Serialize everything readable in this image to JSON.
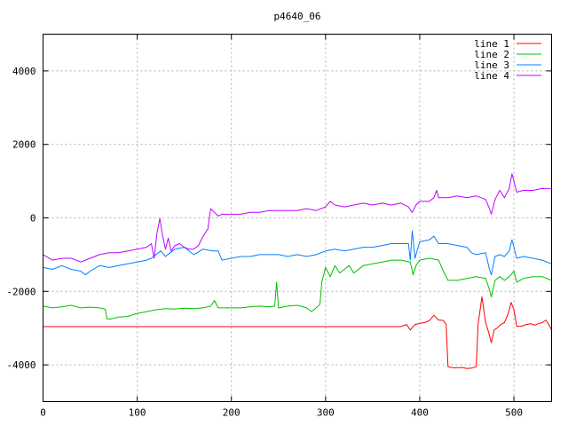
{
  "chart_data": {
    "type": "line",
    "title": "p4640_06",
    "xlabel": "",
    "ylabel": "",
    "xlim": [
      0,
      540
    ],
    "ylim": [
      -5000,
      5000
    ],
    "x_ticks": [
      0,
      100,
      200,
      300,
      400,
      500
    ],
    "y_ticks": [
      -4000,
      -2000,
      0,
      2000,
      4000
    ],
    "grid": true,
    "legend_position": "top-right",
    "series": [
      {
        "name": "line 1",
        "color": "#ff0000",
        "points": [
          [
            0,
            -2960
          ],
          [
            100,
            -2960
          ],
          [
            200,
            -2960
          ],
          [
            300,
            -2960
          ],
          [
            380,
            -2960
          ],
          [
            386,
            -2900
          ],
          [
            390,
            -3050
          ],
          [
            395,
            -2900
          ],
          [
            400,
            -2870
          ],
          [
            405,
            -2850
          ],
          [
            410,
            -2800
          ],
          [
            415,
            -2650
          ],
          [
            420,
            -2780
          ],
          [
            425,
            -2790
          ],
          [
            428,
            -2900
          ],
          [
            430,
            -4050
          ],
          [
            435,
            -4080
          ],
          [
            440,
            -4080
          ],
          [
            445,
            -4070
          ],
          [
            450,
            -4100
          ],
          [
            455,
            -4090
          ],
          [
            460,
            -4050
          ],
          [
            462,
            -2900
          ],
          [
            466,
            -2150
          ],
          [
            470,
            -2850
          ],
          [
            473,
            -3100
          ],
          [
            476,
            -3400
          ],
          [
            479,
            -3050
          ],
          [
            482,
            -3000
          ],
          [
            486,
            -2900
          ],
          [
            490,
            -2850
          ],
          [
            494,
            -2600
          ],
          [
            497,
            -2300
          ],
          [
            500,
            -2500
          ],
          [
            503,
            -2950
          ],
          [
            508,
            -2950
          ],
          [
            513,
            -2900
          ],
          [
            518,
            -2880
          ],
          [
            522,
            -2920
          ],
          [
            526,
            -2880
          ],
          [
            530,
            -2850
          ],
          [
            534,
            -2780
          ],
          [
            537,
            -2900
          ],
          [
            540,
            -3050
          ]
        ]
      },
      {
        "name": "line 2",
        "color": "#00c000",
        "points": [
          [
            0,
            -2400
          ],
          [
            10,
            -2450
          ],
          [
            20,
            -2420
          ],
          [
            30,
            -2380
          ],
          [
            40,
            -2450
          ],
          [
            50,
            -2430
          ],
          [
            60,
            -2450
          ],
          [
            66,
            -2480
          ],
          [
            68,
            -2750
          ],
          [
            72,
            -2750
          ],
          [
            80,
            -2700
          ],
          [
            90,
            -2680
          ],
          [
            100,
            -2600
          ],
          [
            110,
            -2550
          ],
          [
            120,
            -2500
          ],
          [
            130,
            -2470
          ],
          [
            140,
            -2480
          ],
          [
            150,
            -2460
          ],
          [
            160,
            -2470
          ],
          [
            170,
            -2450
          ],
          [
            178,
            -2400
          ],
          [
            182,
            -2250
          ],
          [
            186,
            -2450
          ],
          [
            200,
            -2450
          ],
          [
            210,
            -2450
          ],
          [
            220,
            -2420
          ],
          [
            230,
            -2400
          ],
          [
            240,
            -2420
          ],
          [
            246,
            -2400
          ],
          [
            248,
            -1750
          ],
          [
            250,
            -2450
          ],
          [
            260,
            -2400
          ],
          [
            270,
            -2380
          ],
          [
            280,
            -2450
          ],
          [
            285,
            -2550
          ],
          [
            290,
            -2450
          ],
          [
            294,
            -2350
          ],
          [
            296,
            -1750
          ],
          [
            300,
            -1350
          ],
          [
            305,
            -1600
          ],
          [
            310,
            -1300
          ],
          [
            315,
            -1500
          ],
          [
            320,
            -1400
          ],
          [
            325,
            -1300
          ],
          [
            330,
            -1500
          ],
          [
            340,
            -1300
          ],
          [
            350,
            -1250
          ],
          [
            360,
            -1200
          ],
          [
            370,
            -1150
          ],
          [
            380,
            -1150
          ],
          [
            390,
            -1200
          ],
          [
            393,
            -1550
          ],
          [
            396,
            -1300
          ],
          [
            400,
            -1150
          ],
          [
            410,
            -1100
          ],
          [
            420,
            -1150
          ],
          [
            425,
            -1450
          ],
          [
            430,
            -1700
          ],
          [
            440,
            -1700
          ],
          [
            450,
            -1650
          ],
          [
            460,
            -1600
          ],
          [
            470,
            -1650
          ],
          [
            474,
            -1950
          ],
          [
            476,
            -2150
          ],
          [
            480,
            -1700
          ],
          [
            485,
            -1600
          ],
          [
            490,
            -1700
          ],
          [
            495,
            -1600
          ],
          [
            500,
            -1450
          ],
          [
            503,
            -1750
          ],
          [
            510,
            -1650
          ],
          [
            520,
            -1600
          ],
          [
            530,
            -1600
          ],
          [
            540,
            -1700
          ]
        ]
      },
      {
        "name": "line 3",
        "color": "#0080ff",
        "points": [
          [
            0,
            -1350
          ],
          [
            10,
            -1400
          ],
          [
            20,
            -1300
          ],
          [
            30,
            -1400
          ],
          [
            40,
            -1450
          ],
          [
            45,
            -1550
          ],
          [
            50,
            -1450
          ],
          [
            60,
            -1300
          ],
          [
            70,
            -1350
          ],
          [
            80,
            -1300
          ],
          [
            90,
            -1250
          ],
          [
            100,
            -1200
          ],
          [
            110,
            -1150
          ],
          [
            115,
            -1100
          ],
          [
            120,
            -1000
          ],
          [
            125,
            -900
          ],
          [
            130,
            -1050
          ],
          [
            135,
            -950
          ],
          [
            140,
            -850
          ],
          [
            150,
            -800
          ],
          [
            160,
            -1000
          ],
          [
            170,
            -850
          ],
          [
            180,
            -900
          ],
          [
            186,
            -900
          ],
          [
            190,
            -1150
          ],
          [
            200,
            -1100
          ],
          [
            210,
            -1050
          ],
          [
            220,
            -1050
          ],
          [
            230,
            -1000
          ],
          [
            240,
            -1000
          ],
          [
            250,
            -1000
          ],
          [
            260,
            -1050
          ],
          [
            270,
            -1000
          ],
          [
            280,
            -1050
          ],
          [
            290,
            -1000
          ],
          [
            300,
            -900
          ],
          [
            310,
            -850
          ],
          [
            320,
            -900
          ],
          [
            330,
            -850
          ],
          [
            340,
            -800
          ],
          [
            350,
            -800
          ],
          [
            360,
            -750
          ],
          [
            370,
            -700
          ],
          [
            380,
            -700
          ],
          [
            388,
            -700
          ],
          [
            390,
            -1150
          ],
          [
            392,
            -350
          ],
          [
            395,
            -1100
          ],
          [
            400,
            -650
          ],
          [
            410,
            -600
          ],
          [
            415,
            -500
          ],
          [
            420,
            -700
          ],
          [
            430,
            -700
          ],
          [
            440,
            -750
          ],
          [
            450,
            -800
          ],
          [
            455,
            -950
          ],
          [
            460,
            -1000
          ],
          [
            470,
            -950
          ],
          [
            474,
            -1400
          ],
          [
            476,
            -1550
          ],
          [
            480,
            -1050
          ],
          [
            485,
            -1000
          ],
          [
            490,
            -1050
          ],
          [
            495,
            -900
          ],
          [
            498,
            -600
          ],
          [
            500,
            -800
          ],
          [
            503,
            -1100
          ],
          [
            510,
            -1050
          ],
          [
            520,
            -1100
          ],
          [
            530,
            -1150
          ],
          [
            540,
            -1250
          ]
        ]
      },
      {
        "name": "line 4",
        "color": "#c000ff",
        "points": [
          [
            0,
            -1000
          ],
          [
            10,
            -1150
          ],
          [
            20,
            -1100
          ],
          [
            30,
            -1100
          ],
          [
            40,
            -1200
          ],
          [
            50,
            -1100
          ],
          [
            60,
            -1000
          ],
          [
            70,
            -950
          ],
          [
            80,
            -950
          ],
          [
            90,
            -900
          ],
          [
            100,
            -850
          ],
          [
            110,
            -800
          ],
          [
            115,
            -700
          ],
          [
            118,
            -1100
          ],
          [
            121,
            -400
          ],
          [
            124,
            -20
          ],
          [
            127,
            -500
          ],
          [
            130,
            -850
          ],
          [
            133,
            -550
          ],
          [
            136,
            -900
          ],
          [
            140,
            -750
          ],
          [
            145,
            -700
          ],
          [
            150,
            -800
          ],
          [
            155,
            -850
          ],
          [
            160,
            -850
          ],
          [
            165,
            -750
          ],
          [
            170,
            -500
          ],
          [
            175,
            -300
          ],
          [
            178,
            250
          ],
          [
            182,
            150
          ],
          [
            186,
            50
          ],
          [
            190,
            100
          ],
          [
            200,
            100
          ],
          [
            210,
            100
          ],
          [
            220,
            150
          ],
          [
            230,
            150
          ],
          [
            240,
            200
          ],
          [
            250,
            200
          ],
          [
            260,
            200
          ],
          [
            270,
            200
          ],
          [
            280,
            250
          ],
          [
            290,
            200
          ],
          [
            300,
            300
          ],
          [
            305,
            450
          ],
          [
            310,
            350
          ],
          [
            320,
            300
          ],
          [
            330,
            350
          ],
          [
            340,
            400
          ],
          [
            350,
            350
          ],
          [
            360,
            400
          ],
          [
            370,
            350
          ],
          [
            380,
            400
          ],
          [
            388,
            300
          ],
          [
            392,
            150
          ],
          [
            396,
            350
          ],
          [
            400,
            450
          ],
          [
            410,
            450
          ],
          [
            415,
            550
          ],
          [
            418,
            750
          ],
          [
            420,
            550
          ],
          [
            430,
            550
          ],
          [
            440,
            600
          ],
          [
            450,
            550
          ],
          [
            460,
            600
          ],
          [
            465,
            550
          ],
          [
            470,
            500
          ],
          [
            474,
            250
          ],
          [
            476,
            100
          ],
          [
            480,
            500
          ],
          [
            485,
            750
          ],
          [
            490,
            550
          ],
          [
            495,
            800
          ],
          [
            498,
            1200
          ],
          [
            500,
            1000
          ],
          [
            503,
            700
          ],
          [
            510,
            750
          ],
          [
            520,
            750
          ],
          [
            530,
            800
          ],
          [
            540,
            800
          ]
        ]
      }
    ]
  }
}
